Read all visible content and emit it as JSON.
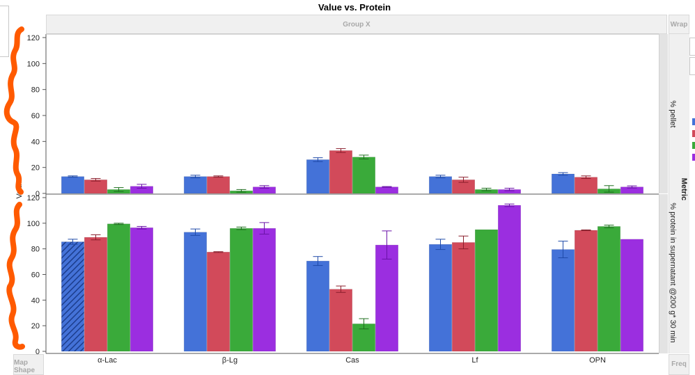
{
  "title": "Value vs. Protein",
  "drop_zones": {
    "group_x": "Group X",
    "wrap": "Wrap",
    "map_shape": "Map Shape",
    "freq": "Freq",
    "overlay": "Metric"
  },
  "colors": {
    "series": [
      "#4472d8",
      "#d24a5a",
      "#3aaa3a",
      "#9b2ee0"
    ],
    "annotation": "#ff5a00",
    "frame": "#c8c8c8",
    "grid_bg": "#ffffff"
  },
  "chart_data": {
    "type": "bar",
    "title": "Value vs. Protein",
    "ylabel": "Value",
    "xlabel": "",
    "categories": [
      "α-Lac",
      "β-Lg",
      "Cas",
      "Lf",
      "OPN"
    ],
    "ylim": [
      0,
      120
    ],
    "yticks": [
      0,
      20,
      40,
      60,
      80,
      100,
      120
    ],
    "grid": false,
    "legend": "right (partially cut off)",
    "error_bars": true,
    "panels": [
      {
        "row_label": "% pellet",
        "series": [
          {
            "values": [
              13,
              13,
              26,
              13,
              15
            ],
            "err": [
              0.5,
              1,
              1.5,
              1,
              1
            ]
          },
          {
            "values": [
              10.5,
              13,
              33,
              10.5,
              12.5
            ],
            "err": [
              1,
              0.5,
              1.5,
              2,
              1
            ]
          },
          {
            "values": [
              3,
              2,
              28,
              3,
              3.5
            ],
            "err": [
              1.5,
              1,
              1.5,
              1,
              2.5
            ]
          },
          {
            "values": [
              5.5,
              5,
              5,
              3,
              5
            ],
            "err": [
              1.5,
              1,
              0.3,
              1,
              0.8
            ]
          }
        ]
      },
      {
        "row_label": "% protein in supernatant @200 g* 30 min",
        "series": [
          {
            "values": [
              85.5,
              93,
              70.5,
              83.5,
              79.5
            ],
            "err": [
              2,
              2.5,
              3.5,
              4,
              6.5
            ]
          },
          {
            "values": [
              89,
              77.5,
              48.5,
              85,
              94.5
            ],
            "err": [
              2,
              0.3,
              2.5,
              5,
              0.3
            ]
          },
          {
            "values": [
              99.5,
              96,
              21.5,
              95,
              97.5
            ],
            "err": [
              0.5,
              1,
              4,
              0,
              1
            ]
          },
          {
            "values": [
              96.5,
              96,
              83,
              114,
              87.5
            ],
            "err": [
              1,
              4.5,
              11,
              1,
              0
            ]
          }
        ]
      }
    ]
  }
}
